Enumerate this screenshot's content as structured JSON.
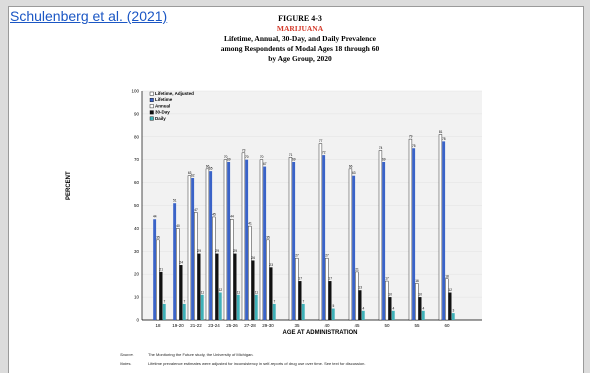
{
  "source_link": "Schulenberg et al. (2021)",
  "figure": {
    "label": "FIGURE 4-3",
    "subject": "MARIJUANA",
    "title_lines": [
      "Lifetime, Annual, 30-Day, and Daily Prevalence",
      "among Respondents of Modal Ages 18 through 60",
      "by Age Group, 2020"
    ]
  },
  "notes": {
    "source_key": "Source.",
    "source_text": "The Monitoring the Future study, the University of Michigan.",
    "notes_key": "Notes.",
    "notes_text": "Lifetime prevalence estimates were adjusted for inconsistency in self-reports of drug use over time. See text for discussion."
  },
  "colors": {
    "lifetime_adjusted": "#ffffff",
    "lifetime": "#3a63c8",
    "annual": "#ffffff",
    "thirty_day": "#111111",
    "daily": "#3fb1b8"
  },
  "chart_data": {
    "type": "bar",
    "ylabel": "PERCENT",
    "xlabel": "AGE AT ADMINISTRATION",
    "ylim": [
      0,
      100
    ],
    "yticks": [
      0,
      10,
      20,
      30,
      40,
      50,
      60,
      70,
      80,
      90,
      100
    ],
    "legend_position": "top-left",
    "categories": [
      "18",
      "19-20",
      "21-22",
      "23-24",
      "25-26",
      "27-28",
      "29-30",
      "35",
      "40",
      "45",
      "50",
      "55",
      "60"
    ],
    "series": [
      {
        "name": "Lifetime, Adjusted",
        "values": [
          null,
          null,
          63,
          66,
          70,
          73,
          70,
          71,
          77,
          66,
          74,
          79,
          81
        ]
      },
      {
        "name": "Lifetime",
        "values": [
          44,
          51,
          62,
          65,
          69,
          70,
          67,
          69,
          72,
          63,
          69,
          75,
          78
        ]
      },
      {
        "name": "Annual",
        "values": [
          35,
          40,
          47,
          45,
          44,
          41,
          35,
          27,
          27,
          21,
          17,
          16,
          18
        ]
      },
      {
        "name": "30-Day",
        "values": [
          21,
          24,
          29,
          29,
          29,
          26,
          23,
          17,
          17,
          13,
          10,
          10,
          12
        ]
      },
      {
        "name": "Daily",
        "values": [
          7,
          7,
          11,
          12,
          11,
          11,
          7,
          7,
          5,
          4,
          4,
          4,
          3
        ]
      }
    ]
  }
}
